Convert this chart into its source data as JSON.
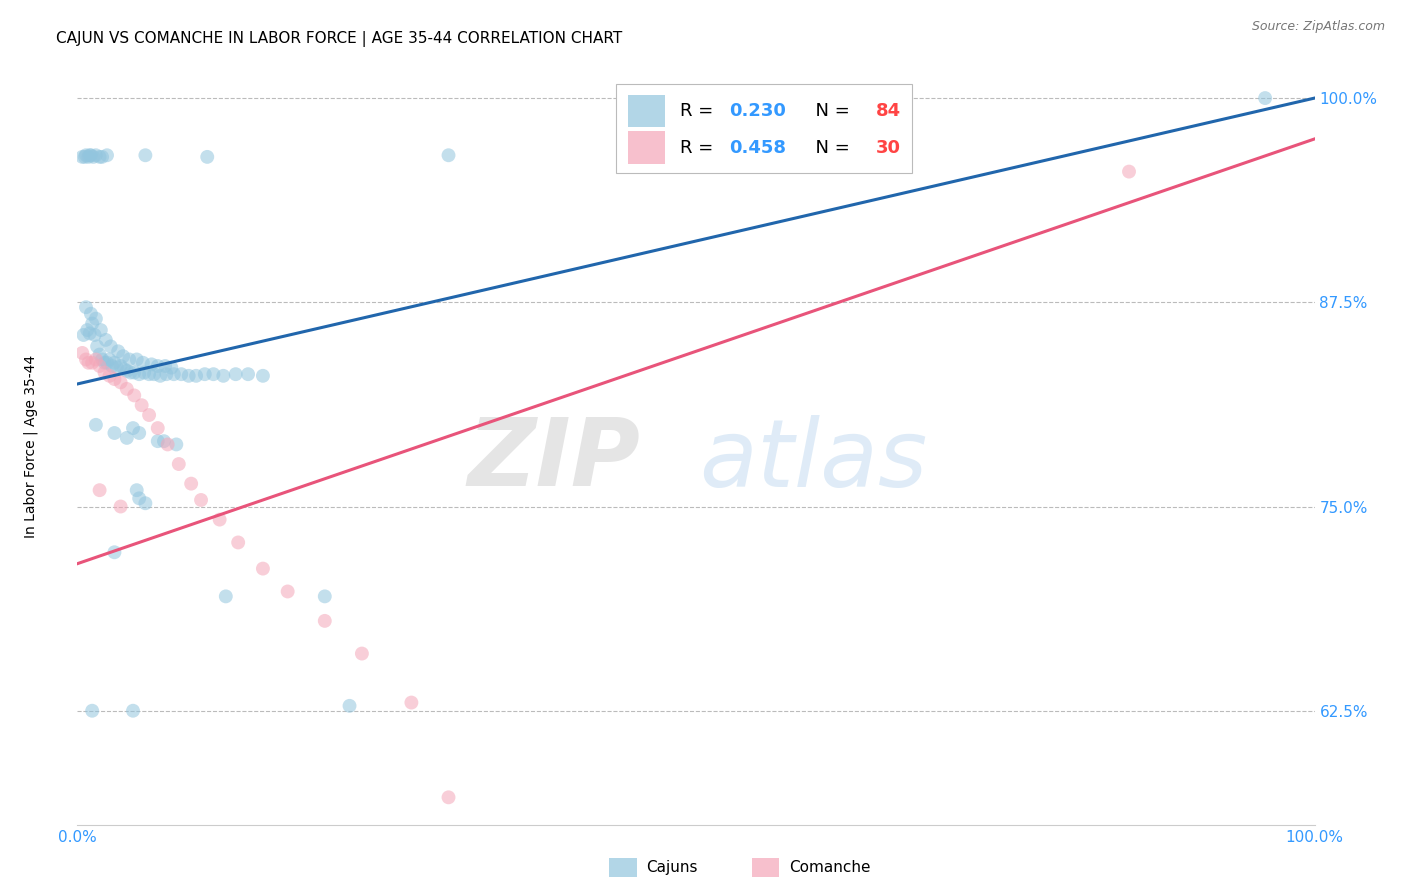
{
  "title": "CAJUN VS COMANCHE IN LABOR FORCE | AGE 35-44 CORRELATION CHART",
  "source": "Source: ZipAtlas.com",
  "ylabel": "In Labor Force | Age 35-44",
  "xlim": [
    0.0,
    1.0
  ],
  "ylim": [
    0.555,
    1.03
  ],
  "yticks": [
    0.625,
    0.75,
    0.875,
    1.0
  ],
  "ytick_labels": [
    "62.5%",
    "75.0%",
    "87.5%",
    "100.0%"
  ],
  "xticks": [
    0.0,
    0.125,
    0.25,
    0.375,
    0.5,
    0.625,
    0.75,
    0.875,
    1.0
  ],
  "xtick_labels": [
    "0.0%",
    "",
    "",
    "",
    "",
    "",
    "",
    "",
    "100.0%"
  ],
  "cajun_color": "#92c5de",
  "comanche_color": "#f4a6b8",
  "cajun_line_color": "#2166ac",
  "comanche_line_color": "#e8547a",
  "background_color": "#ffffff",
  "grid_color": "#bbbbbb",
  "marker_size": 100,
  "marker_alpha": 0.55,
  "line_width": 2.2,
  "cajun_line_x0": 0.0,
  "cajun_line_y0": 0.825,
  "cajun_line_x1": 1.0,
  "cajun_line_y1": 1.0,
  "comanche_line_x0": 0.0,
  "comanche_line_y0": 0.715,
  "comanche_line_x1": 1.0,
  "comanche_line_y1": 0.975
}
